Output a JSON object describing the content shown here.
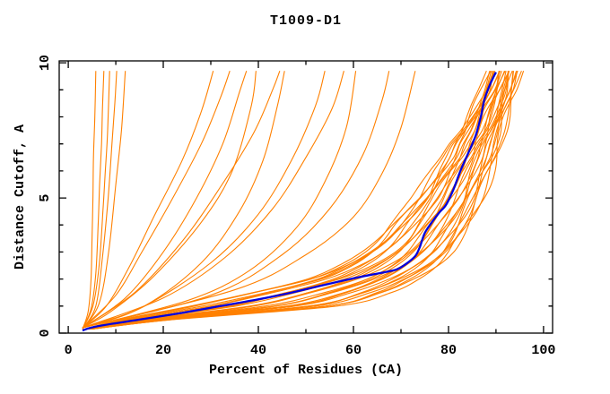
{
  "title": "T1009-D1",
  "colors": {
    "model_line": "#FF8000",
    "highlight_line": "#0000DD",
    "axis": "#000000",
    "text": "#000000",
    "background": "#FFFFFF"
  },
  "chart_data": {
    "type": "line",
    "title": "T1009-D1",
    "xlabel": "Percent of Residues (CA)",
    "ylabel": "Distance Cutoff, A",
    "xlim": [
      -1.9,
      101.9
    ],
    "ylim": [
      0,
      10.07
    ],
    "x_major_ticks": [
      0,
      20,
      40,
      60,
      80,
      100
    ],
    "x_minor_ticks": [
      10,
      30,
      50,
      70,
      90
    ],
    "y_major_ticks": [
      0,
      5,
      10
    ],
    "y_minor_ticks": [
      1,
      2,
      3,
      4,
      6,
      7,
      8,
      9
    ],
    "grid": false,
    "legend": false,
    "axes_box": true,
    "highlight_curve": {
      "name": "highlighted-model",
      "color": "#0000DD",
      "points": [
        [
          3,
          0.1
        ],
        [
          6,
          0.25
        ],
        [
          15,
          0.5
        ],
        [
          24,
          0.75
        ],
        [
          32,
          1
        ],
        [
          40,
          1.25
        ],
        [
          47,
          1.5
        ],
        [
          53,
          1.75
        ],
        [
          58,
          1.95
        ],
        [
          62,
          2.1
        ],
        [
          65,
          2.2
        ],
        [
          69,
          2.35
        ],
        [
          71,
          2.55
        ],
        [
          73,
          2.85
        ],
        [
          74,
          3.2
        ],
        [
          75,
          3.7
        ],
        [
          76.5,
          4.1
        ],
        [
          78,
          4.45
        ],
        [
          79.5,
          4.75
        ],
        [
          81,
          5.3
        ],
        [
          82.5,
          6
        ],
        [
          84,
          6.6
        ],
        [
          85.7,
          7.3
        ],
        [
          86.8,
          8
        ],
        [
          87.5,
          8.6
        ],
        [
          88.5,
          9.1
        ],
        [
          89.4,
          9.45
        ],
        [
          90,
          9.65
        ]
      ]
    },
    "loose_curves": {
      "color": "#FF8000",
      "curves": [
        [
          [
            3,
            0.15
          ],
          [
            4.2,
            0.8
          ],
          [
            4.8,
            2
          ],
          [
            5,
            3.5
          ],
          [
            5.2,
            5
          ],
          [
            5.3,
            6.5
          ],
          [
            5.6,
            8
          ],
          [
            5.8,
            9.7
          ]
        ],
        [
          [
            3,
            0.15
          ],
          [
            4.8,
            0.9
          ],
          [
            5.8,
            2.2
          ],
          [
            6.3,
            4
          ],
          [
            6.6,
            5.5
          ],
          [
            7,
            7
          ],
          [
            7.2,
            8.3
          ],
          [
            7.5,
            9.7
          ]
        ],
        [
          [
            3,
            0.15
          ],
          [
            5.2,
            1
          ],
          [
            6.5,
            2.5
          ],
          [
            7.3,
            4.5
          ],
          [
            7.8,
            6
          ],
          [
            8.3,
            7.5
          ],
          [
            8.7,
            9.7
          ]
        ],
        [
          [
            3,
            0.15
          ],
          [
            5.8,
            1
          ],
          [
            7.2,
            2.8
          ],
          [
            8.4,
            5
          ],
          [
            9.2,
            7
          ],
          [
            9.8,
            8.5
          ],
          [
            10.2,
            9.7
          ]
        ],
        [
          [
            3,
            0.15
          ],
          [
            6.5,
            1.1
          ],
          [
            8.5,
            3
          ],
          [
            10,
            5.5
          ],
          [
            11.2,
            7.5
          ],
          [
            12,
            9.7
          ]
        ],
        [
          [
            3,
            0.2
          ],
          [
            8,
            1
          ],
          [
            13,
            2.5
          ],
          [
            18,
            4.3
          ],
          [
            24,
            6.4
          ],
          [
            28,
            8.2
          ],
          [
            30.5,
            9.7
          ]
        ],
        [
          [
            3,
            0.2
          ],
          [
            10,
            1.4
          ],
          [
            15.5,
            3
          ],
          [
            22,
            5
          ],
          [
            28,
            7
          ],
          [
            32,
            8.7
          ],
          [
            34,
            9.7
          ]
        ],
        [
          [
            3,
            0.2
          ],
          [
            12,
            1.3
          ],
          [
            20,
            3
          ],
          [
            27,
            5
          ],
          [
            32.5,
            7
          ],
          [
            36,
            8.9
          ],
          [
            37.5,
            9.7
          ]
        ],
        [
          [
            3,
            0.2
          ],
          [
            9,
            0.8
          ],
          [
            18,
            2.1
          ],
          [
            28,
            4.1
          ],
          [
            34.5,
            6
          ],
          [
            38.5,
            8.4
          ],
          [
            39.5,
            9.7
          ]
        ],
        [
          [
            3,
            0.2
          ],
          [
            14,
            1.5
          ],
          [
            24,
            3.4
          ],
          [
            32,
            5.4
          ],
          [
            39,
            7.4
          ],
          [
            43,
            9
          ],
          [
            44.5,
            9.7
          ]
        ],
        [
          [
            3,
            0.2
          ],
          [
            16,
            1
          ],
          [
            28,
            2.6
          ],
          [
            36,
            4.5
          ],
          [
            41,
            6.4
          ],
          [
            44,
            8.4
          ],
          [
            45.5,
            9.7
          ]
        ],
        [
          [
            3,
            0.2
          ],
          [
            15,
            0.9
          ],
          [
            30,
            2.6
          ],
          [
            40,
            4.4
          ],
          [
            47,
            6.4
          ],
          [
            52,
            8.4
          ],
          [
            54,
            9.7
          ]
        ],
        [
          [
            3,
            0.2
          ],
          [
            20,
            1.3
          ],
          [
            33,
            2.8
          ],
          [
            43,
            4.6
          ],
          [
            50,
            6.5
          ],
          [
            55.5,
            8.3
          ],
          [
            58,
            9.7
          ]
        ],
        [
          [
            3,
            0.2
          ],
          [
            25,
            1.2
          ],
          [
            38,
            2.3
          ],
          [
            48,
            3.9
          ],
          [
            54,
            5.6
          ],
          [
            58.5,
            7.6
          ],
          [
            60.5,
            9.7
          ]
        ],
        [
          [
            3,
            0.2
          ],
          [
            30,
            1.4
          ],
          [
            45,
            2.9
          ],
          [
            55,
            4.6
          ],
          [
            62,
            6.6
          ],
          [
            66,
            8.6
          ],
          [
            67.5,
            9.7
          ]
        ],
        [
          [
            3,
            0.2
          ],
          [
            35,
            1.6
          ],
          [
            50,
            2.9
          ],
          [
            60,
            4.3
          ],
          [
            66,
            5.9
          ],
          [
            70,
            7.6
          ],
          [
            73,
            9.7
          ]
        ]
      ]
    },
    "bundle_curves": {
      "color": "#FF8000",
      "cutoffs": [
        0.15,
        0.5,
        1,
        1.5,
        2,
        2.5,
        3,
        3.5,
        4,
        4.5,
        5,
        5.5,
        6,
        6.5,
        7,
        7.5,
        8,
        8.5,
        9,
        9.7
      ],
      "lower_envelope": [
        3.5,
        11,
        25,
        38,
        50,
        57,
        62,
        65.5,
        68,
        70.5,
        73,
        75,
        77,
        79,
        80.5,
        82.5,
        84,
        85.5,
        87,
        88.5
      ],
      "upper_envelope": [
        5,
        22,
        56,
        67,
        73,
        77.5,
        80.5,
        82.5,
        84.3,
        85.8,
        87,
        88,
        89,
        90,
        90.8,
        91.6,
        92.3,
        93,
        93.8,
        94.8
      ],
      "t_values": [
        0,
        0.04,
        0.07,
        0.1,
        0.13,
        0.16,
        0.2,
        0.24,
        0.28,
        0.32,
        0.36,
        0.4,
        0.44,
        0.48,
        0.52,
        0.56,
        0.6,
        0.63,
        0.66,
        0.7,
        0.73,
        0.76,
        0.8,
        0.83,
        0.86,
        0.89,
        0.92,
        0.95,
        0.98,
        1
      ],
      "wobble_amplitude": 1.0
    }
  }
}
